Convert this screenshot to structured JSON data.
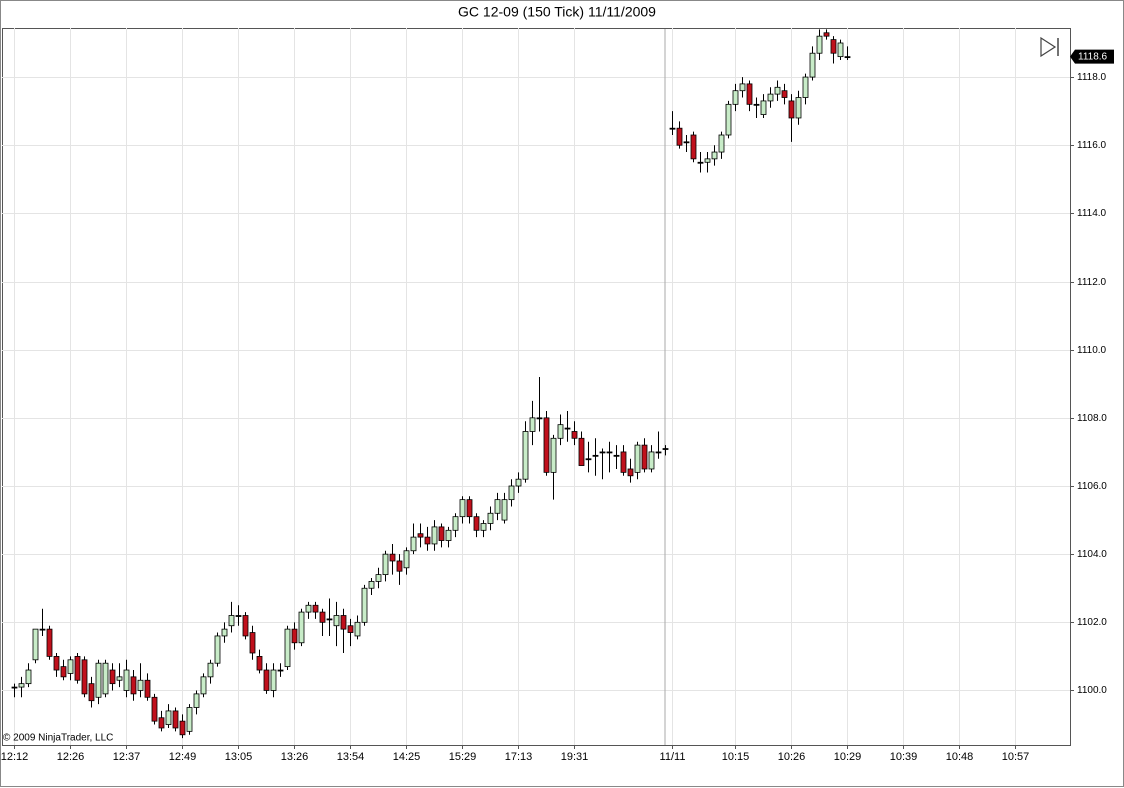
{
  "chart_data": {
    "type": "candlestick",
    "title": "GC 12-09 (150 Tick)  11/11/2009",
    "copyright": "© 2009 NinjaTrader, LLC",
    "up_color": "#c8ecc8",
    "down_color": "#c0101c",
    "open": [
      1100.1,
      1100.1,
      1100.2,
      1100.9,
      1101.8,
      1101.8,
      1101.0,
      1100.7,
      1100.5,
      1101.0,
      1100.9,
      1100.2,
      1099.8,
      1099.9,
      1100.6,
      1100.3,
      1100.0,
      1100.4,
      1100.0,
      1100.3,
      1099.8,
      1099.2,
      1099.0,
      1099.4,
      1099.1,
      1098.8,
      1099.5,
      1099.9,
      1100.4,
      1100.8,
      1101.6,
      1101.9,
      1102.2,
      1102.2,
      1101.7,
      1101.0,
      1100.6,
      1100.0,
      1100.6,
      1100.7,
      1101.8,
      1101.4,
      1102.3,
      1102.5,
      1102.3,
      1102.1,
      1101.9,
      1102.2,
      1101.9,
      1101.6,
      1102.0,
      1103.0,
      1103.2,
      1103.4,
      1104.0,
      1103.8,
      1103.6,
      1104.1,
      1104.6,
      1104.5,
      1104.3,
      1104.8,
      1104.4,
      1104.7,
      1105.1,
      1105.6,
      1105.1,
      1104.7,
      1104.9,
      1105.2,
      1105.0,
      1105.6,
      1106.0,
      1106.2,
      1107.6,
      1108.0,
      1108.0,
      1106.4,
      1107.4,
      1107.7,
      1107.6,
      1107.4,
      1106.8,
      1106.9,
      1107.0,
      1107.0,
      1106.9,
      1107.0,
      1106.5,
      1106.4,
      1107.2,
      1106.5,
      1107.0,
      1107.1,
      1116.5,
      1116.5,
      1116.1,
      1116.3,
      1115.5,
      1115.5,
      1115.6,
      1115.8,
      1116.3,
      1117.2,
      1117.6,
      1117.8,
      1117.2,
      1116.9,
      1117.3,
      1117.5,
      1117.6,
      1117.3,
      1116.8,
      1117.4,
      1118.0,
      1118.7,
      1119.3,
      1119.1,
      1118.6,
      1118.6
    ],
    "high": [
      1100.2,
      1100.4,
      1100.8,
      1101.8,
      1102.4,
      1101.9,
      1101.1,
      1100.9,
      1101.0,
      1101.1,
      1101.0,
      1100.4,
      1100.9,
      1100.9,
      1100.8,
      1100.8,
      1100.9,
      1100.6,
      1100.8,
      1100.5,
      1099.9,
      1099.4,
      1099.6,
      1099.5,
      1099.3,
      1099.6,
      1100.0,
      1100.5,
      1100.9,
      1101.7,
      1102.0,
      1102.6,
      1102.5,
      1102.3,
      1101.9,
      1101.2,
      1100.8,
      1100.8,
      1100.8,
      1101.9,
      1102.0,
      1102.4,
      1102.6,
      1102.6,
      1102.4,
      1102.7,
      1102.6,
      1102.4,
      1102.1,
      1102.2,
      1103.1,
      1103.3,
      1103.6,
      1104.1,
      1104.3,
      1104.0,
      1104.2,
      1104.9,
      1104.9,
      1104.8,
      1105.0,
      1104.9,
      1104.8,
      1105.2,
      1105.7,
      1105.7,
      1105.2,
      1105.0,
      1105.4,
      1105.8,
      1105.8,
      1106.2,
      1106.4,
      1107.9,
      1108.5,
      1109.2,
      1108.2,
      1107.5,
      1108.1,
      1108.2,
      1107.9,
      1107.6,
      1107.3,
      1107.4,
      1107.1,
      1107.3,
      1107.2,
      1107.2,
      1106.8,
      1107.3,
      1107.4,
      1107.2,
      1107.6,
      1107.2,
      1117.0,
      1116.7,
      1116.3,
      1116.4,
      1115.8,
      1115.8,
      1116.0,
      1116.4,
      1117.3,
      1117.8,
      1118.0,
      1117.9,
      1117.4,
      1117.5,
      1117.7,
      1117.9,
      1117.8,
      1117.5,
      1117.6,
      1118.1,
      1118.9,
      1119.4,
      1119.4,
      1119.2,
      1119.1,
      1118.9
    ],
    "low": [
      1099.8,
      1099.8,
      1100.1,
      1100.8,
      1101.6,
      1100.9,
      1100.4,
      1100.3,
      1100.3,
      1100.2,
      1099.8,
      1099.5,
      1099.6,
      1099.8,
      1100.0,
      1100.1,
      1099.8,
      1099.7,
      1099.8,
      1099.7,
      1099.0,
      1098.8,
      1098.9,
      1098.8,
      1098.6,
      1098.7,
      1099.3,
      1099.8,
      1100.2,
      1100.7,
      1101.4,
      1101.7,
      1101.9,
      1101.5,
      1100.9,
      1100.5,
      1099.9,
      1099.8,
      1100.4,
      1100.6,
      1101.2,
      1101.3,
      1102.1,
      1102.1,
      1101.6,
      1101.6,
      1101.3,
      1101.1,
      1101.3,
      1101.5,
      1101.9,
      1102.8,
      1103.0,
      1103.2,
      1103.4,
      1103.1,
      1103.4,
      1104.0,
      1104.2,
      1104.1,
      1104.1,
      1104.2,
      1104.2,
      1104.5,
      1104.9,
      1104.9,
      1104.5,
      1104.5,
      1104.7,
      1105.0,
      1104.9,
      1105.4,
      1105.8,
      1106.1,
      1107.2,
      1107.6,
      1106.3,
      1105.6,
      1107.2,
      1107.3,
      1107.2,
      1106.6,
      1106.4,
      1106.3,
      1106.2,
      1106.4,
      1106.5,
      1106.3,
      1106.1,
      1106.2,
      1106.4,
      1106.4,
      1106.8,
      1106.9,
      1116.3,
      1115.9,
      1115.8,
      1115.5,
      1115.2,
      1115.2,
      1115.4,
      1115.6,
      1116.2,
      1117.0,
      1117.4,
      1117.0,
      1116.8,
      1116.8,
      1117.1,
      1117.3,
      1117.2,
      1116.1,
      1116.6,
      1117.2,
      1117.9,
      1118.5,
      1119.1,
      1118.4,
      1118.5,
      1118.5
    ],
    "close": [
      1100.1,
      1100.2,
      1100.6,
      1101.8,
      1101.8,
      1101.0,
      1100.6,
      1100.4,
      1100.9,
      1100.3,
      1099.9,
      1099.7,
      1100.8,
      1100.8,
      1100.2,
      1100.4,
      1100.6,
      1099.9,
      1100.3,
      1099.8,
      1099.1,
      1098.9,
      1099.4,
      1098.9,
      1098.7,
      1099.5,
      1099.9,
      1100.4,
      1100.8,
      1101.6,
      1101.8,
      1102.2,
      1102.2,
      1101.6,
      1101.1,
      1100.6,
      1100.0,
      1100.6,
      1100.6,
      1101.8,
      1101.4,
      1102.3,
      1102.5,
      1102.3,
      1102.0,
      1102.1,
      1102.2,
      1101.8,
      1101.7,
      1102.0,
      1103.0,
      1103.2,
      1103.4,
      1104.0,
      1103.8,
      1103.5,
      1104.1,
      1104.5,
      1104.5,
      1104.3,
      1104.8,
      1104.4,
      1104.7,
      1105.1,
      1105.6,
      1105.1,
      1104.7,
      1104.9,
      1105.2,
      1105.6,
      1105.6,
      1106.0,
      1106.2,
      1107.6,
      1108.0,
      1108.0,
      1106.4,
      1107.4,
      1107.8,
      1107.7,
      1107.4,
      1106.6,
      1106.8,
      1106.9,
      1107.0,
      1107.0,
      1106.9,
      1106.4,
      1106.3,
      1107.2,
      1106.5,
      1107.0,
      1107.0,
      1107.1,
      1116.5,
      1116.0,
      1116.1,
      1115.6,
      1115.5,
      1115.6,
      1115.8,
      1116.3,
      1117.2,
      1117.6,
      1117.8,
      1117.2,
      1117.2,
      1117.3,
      1117.5,
      1117.7,
      1117.4,
      1116.8,
      1117.4,
      1118.0,
      1118.7,
      1119.2,
      1119.2,
      1118.7,
      1119.0,
      1118.6
    ],
    "xlim": [
      -1.7,
      150.9
    ],
    "xticks": [
      {
        "value": 0,
        "label": "12:12"
      },
      {
        "value": 8,
        "label": "12:26"
      },
      {
        "value": 16,
        "label": "12:37"
      },
      {
        "value": 24,
        "label": "12:49"
      },
      {
        "value": 32,
        "label": "13:05"
      },
      {
        "value": 40,
        "label": "13:26"
      },
      {
        "value": 48,
        "label": "13:54"
      },
      {
        "value": 56,
        "label": "14:25"
      },
      {
        "value": 64,
        "label": "15:29"
      },
      {
        "value": 72,
        "label": "17:13"
      },
      {
        "value": 80,
        "label": "19:31"
      },
      {
        "value": 94,
        "label": "11/11"
      },
      {
        "value": 103,
        "label": "10:15"
      },
      {
        "value": 111,
        "label": "10:26"
      },
      {
        "value": 119,
        "label": "10:29"
      },
      {
        "value": 127,
        "label": "10:39"
      },
      {
        "value": 135,
        "label": "10:48"
      },
      {
        "value": 143,
        "label": "10:57"
      }
    ],
    "ylim": [
      1098.4,
      1119.44
    ],
    "yticks": [
      {
        "value": 1100,
        "label": "1100.0"
      },
      {
        "value": 1102,
        "label": "1102.0"
      },
      {
        "value": 1104,
        "label": "1104.0"
      },
      {
        "value": 1106,
        "label": "1106.0"
      },
      {
        "value": 1108,
        "label": "1108.0"
      },
      {
        "value": 1110,
        "label": "1110.0"
      },
      {
        "value": 1112,
        "label": "1112.0"
      },
      {
        "value": 1114,
        "label": "1114.0"
      },
      {
        "value": 1116,
        "label": "1116.0"
      },
      {
        "value": 1118,
        "label": "1118.0"
      }
    ],
    "grid": true
  }
}
